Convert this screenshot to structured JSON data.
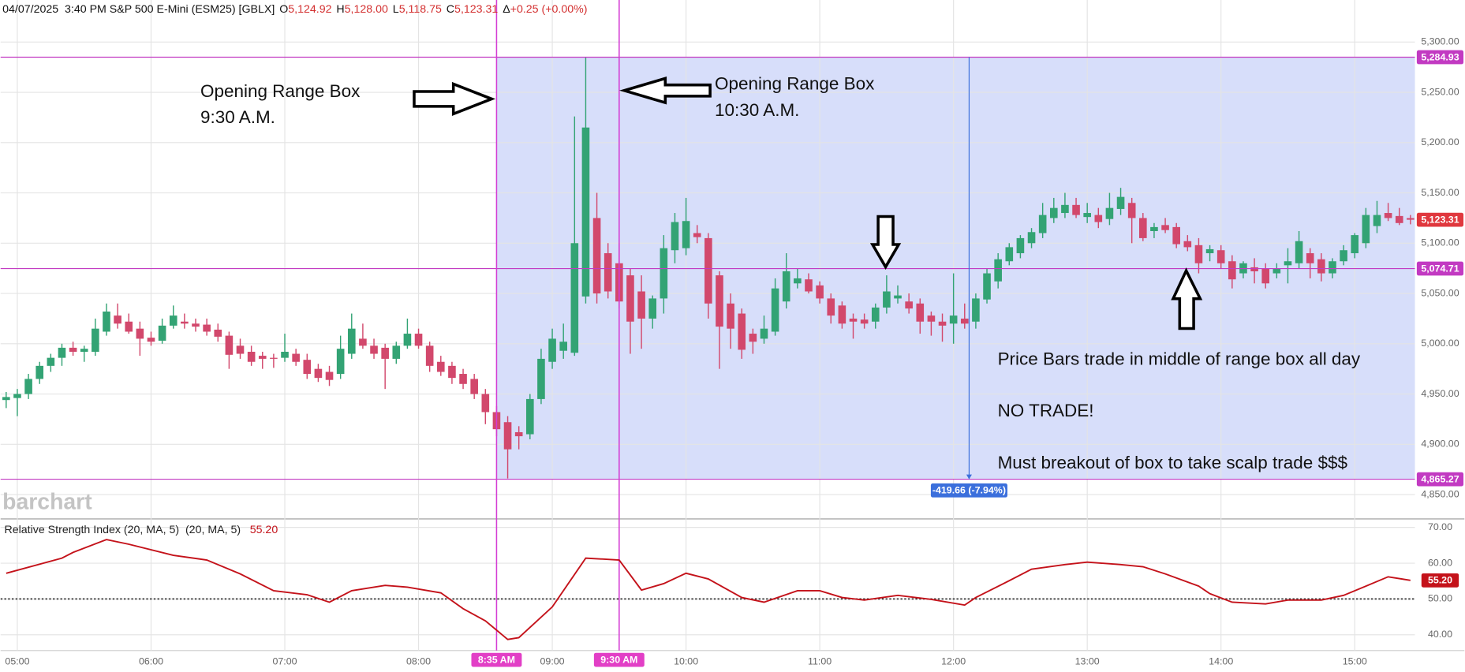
{
  "header": {
    "title": "04/07/2025  3:40 PM S&P 500 E-Mini (ESM25) [GBLX]",
    "quote": [
      {
        "key": "O",
        "value": "5,124.92"
      },
      {
        "key": "H",
        "value": "5,128.00"
      },
      {
        "key": "L",
        "value": "5,118.75"
      },
      {
        "key": "C",
        "value": "5,123.31"
      },
      {
        "key": "Δ",
        "value": "+0.25 (+0.00%)"
      }
    ]
  },
  "chart_data": [
    {
      "type": "candlestick",
      "watermark": "barchart",
      "up_color": "#33a374",
      "down_color": "#d2486c",
      "grid": true,
      "xlim": [
        -0.5,
        126.4
      ],
      "xticks": [
        {
          "value": 1,
          "label": "05:00"
        },
        {
          "value": 13,
          "label": "06:00"
        },
        {
          "value": 25,
          "label": "07:00"
        },
        {
          "value": 37,
          "label": "08:00"
        },
        {
          "value": 49,
          "label": "09:00"
        },
        {
          "value": 61,
          "label": "10:00"
        },
        {
          "value": 73,
          "label": "11:00"
        },
        {
          "value": 85,
          "label": "12:00"
        },
        {
          "value": 97,
          "label": "13:00"
        },
        {
          "value": 109,
          "label": "14:00"
        },
        {
          "value": 121,
          "label": "15:00"
        }
      ],
      "ylim": [
        4826.7,
        5341.8
      ],
      "yticks": [
        {
          "value": 4850,
          "label": "4,850.00"
        },
        {
          "value": 4900,
          "label": "4,900.00"
        },
        {
          "value": 4950,
          "label": "4,950.00"
        },
        {
          "value": 5000,
          "label": "5,000.00"
        },
        {
          "value": 5050,
          "label": "5,050.00"
        },
        {
          "value": 5100,
          "label": "5,100.00"
        },
        {
          "value": 5150,
          "label": "5,150.00"
        },
        {
          "value": 5200,
          "label": "5,200.00"
        },
        {
          "value": 5250,
          "label": "5,250.00"
        },
        {
          "value": 5300,
          "label": "5,300.00"
        }
      ],
      "candles": [
        [
          4944,
          4952,
          4936,
          4947
        ],
        [
          4946,
          4955,
          4928,
          4950
        ],
        [
          4950,
          4970,
          4945,
          4965
        ],
        [
          4965,
          4982,
          4960,
          4978
        ],
        [
          4978,
          4990,
          4972,
          4986
        ],
        [
          4986,
          5000,
          4978,
          4996
        ],
        [
          4996,
          5002,
          4988,
          4992
        ],
        [
          4992,
          4998,
          4982,
          4995
        ],
        [
          4992,
          5025,
          4988,
          5015
        ],
        [
          5012,
          5040,
          5008,
          5032
        ],
        [
          5028,
          5040,
          5015,
          5020
        ],
        [
          5022,
          5030,
          5010,
          5012
        ],
        [
          5015,
          5022,
          4988,
          5005
        ],
        [
          5006,
          5012,
          4998,
          5002
        ],
        [
          5003,
          5025,
          5000,
          5018
        ],
        [
          5018,
          5038,
          5015,
          5028
        ],
        [
          5022,
          5030,
          5015,
          5020
        ],
        [
          5020,
          5025,
          5012,
          5017
        ],
        [
          5019,
          5025,
          5008,
          5012
        ],
        [
          5014,
          5020,
          5002,
          5007
        ],
        [
          5008,
          5012,
          4975,
          4989
        ],
        [
          4998,
          5005,
          4985,
          4990
        ],
        [
          4992,
          4998,
          4978,
          4982
        ],
        [
          4988,
          4992,
          4975,
          4985
        ],
        [
          4986,
          4990,
          4976,
          4985
        ],
        [
          4986,
          5010,
          4982,
          4992
        ],
        [
          4990,
          4995,
          4978,
          4982
        ],
        [
          4984,
          4990,
          4965,
          4970
        ],
        [
          4975,
          4980,
          4962,
          4966
        ],
        [
          4972,
          4978,
          4958,
          4964
        ],
        [
          4970,
          5008,
          4965,
          4995
        ],
        [
          4990,
          5030,
          4985,
          5015
        ],
        [
          5005,
          5020,
          4995,
          4998
        ],
        [
          4998,
          5005,
          4985,
          4990
        ],
        [
          4996,
          5000,
          4955,
          4985
        ],
        [
          4985,
          5002,
          4980,
          4998
        ],
        [
          4998,
          5025,
          4995,
          5010
        ],
        [
          5010,
          5015,
          4995,
          4998
        ],
        [
          4998,
          5002,
          4972,
          4978
        ],
        [
          4982,
          4988,
          4968,
          4972
        ],
        [
          4978,
          4982,
          4960,
          4966
        ],
        [
          4970,
          4975,
          4955,
          4960
        ],
        [
          4965,
          4970,
          4945,
          4950
        ],
        [
          4950,
          4955,
          4920,
          4932
        ],
        [
          4932,
          4938,
          4908,
          4915
        ],
        [
          4922,
          4928,
          4866,
          4895
        ],
        [
          4912,
          4918,
          4895,
          4908
        ],
        [
          4910,
          4950,
          4905,
          4945
        ],
        [
          4945,
          4995,
          4940,
          4985
        ],
        [
          4982,
          5015,
          4975,
          5005
        ],
        [
          4993,
          5020,
          4985,
          5002
        ],
        [
          4991,
          5226,
          4988,
          5100
        ],
        [
          5047,
          5285,
          5040,
          5215
        ],
        [
          5125,
          5150,
          5040,
          5050
        ],
        [
          5090,
          5100,
          5045,
          5052
        ],
        [
          5080,
          5100,
          5035,
          5042
        ],
        [
          5068,
          5075,
          4990,
          5022
        ],
        [
          5052,
          5068,
          4995,
          5025
        ],
        [
          5025,
          5048,
          5015,
          5045
        ],
        [
          5045,
          5108,
          5030,
          5095
        ],
        [
          5093,
          5130,
          5080,
          5121
        ],
        [
          5095,
          5145,
          5088,
          5122
        ],
        [
          5110,
          5118,
          5100,
          5106
        ],
        [
          5105,
          5110,
          5025,
          5040
        ],
        [
          5068,
          5072,
          4975,
          5017
        ],
        [
          5040,
          5050,
          4995,
          5015
        ],
        [
          5030,
          5035,
          4985,
          4994
        ],
        [
          5010,
          5015,
          4990,
          5002
        ],
        [
          5005,
          5028,
          5000,
          5015
        ],
        [
          5012,
          5065,
          5008,
          5055
        ],
        [
          5042,
          5090,
          5035,
          5072
        ],
        [
          5060,
          5075,
          5055,
          5065
        ],
        [
          5064,
          5070,
          5050,
          5052
        ],
        [
          5058,
          5062,
          5040,
          5045
        ],
        [
          5045,
          5050,
          5020,
          5028
        ],
        [
          5038,
          5042,
          5015,
          5020
        ],
        [
          5025,
          5030,
          5005,
          5022
        ],
        [
          5024,
          5030,
          5015,
          5020
        ],
        [
          5022,
          5040,
          5015,
          5036
        ],
        [
          5036,
          5068,
          5030,
          5052
        ],
        [
          5045,
          5058,
          5040,
          5048
        ],
        [
          5042,
          5050,
          5030,
          5035
        ],
        [
          5040,
          5045,
          5010,
          5022
        ],
        [
          5028,
          5032,
          5008,
          5022
        ],
        [
          5022,
          5030,
          5002,
          5018
        ],
        [
          5020,
          5070,
          5000,
          5028
        ],
        [
          5025,
          5040,
          5015,
          5020
        ],
        [
          5022,
          5050,
          5015,
          5045
        ],
        [
          5044,
          5075,
          5040,
          5070
        ],
        [
          5062,
          5090,
          5055,
          5084
        ],
        [
          5082,
          5100,
          5078,
          5096
        ],
        [
          5090,
          5108,
          5085,
          5105
        ],
        [
          5100,
          5115,
          5095,
          5111
        ],
        [
          5110,
          5140,
          5105,
          5128
        ],
        [
          5125,
          5145,
          5120,
          5135
        ],
        [
          5130,
          5150,
          5125,
          5138
        ],
        [
          5138,
          5145,
          5125,
          5128
        ],
        [
          5126,
          5140,
          5120,
          5130
        ],
        [
          5128,
          5135,
          5115,
          5121
        ],
        [
          5124,
          5150,
          5118,
          5135
        ],
        [
          5134,
          5155,
          5128,
          5146
        ],
        [
          5140,
          5145,
          5100,
          5125
        ],
        [
          5125,
          5130,
          5102,
          5105
        ],
        [
          5112,
          5120,
          5105,
          5116
        ],
        [
          5118,
          5125,
          5110,
          5113
        ],
        [
          5116,
          5120,
          5095,
          5099
        ],
        [
          5102,
          5108,
          5092,
          5096
        ],
        [
          5098,
          5105,
          5070,
          5080
        ],
        [
          5090,
          5098,
          5082,
          5094
        ],
        [
          5093,
          5098,
          5075,
          5080
        ],
        [
          5082,
          5088,
          5055,
          5064
        ],
        [
          5070,
          5082,
          5065,
          5080
        ],
        [
          5076,
          5085,
          5060,
          5072
        ],
        [
          5075,
          5080,
          5055,
          5060
        ],
        [
          5070,
          5080,
          5065,
          5075
        ],
        [
          5078,
          5095,
          5060,
          5082
        ],
        [
          5080,
          5112,
          5075,
          5102
        ],
        [
          5090,
          5095,
          5065,
          5080
        ],
        [
          5084,
          5090,
          5062,
          5070
        ],
        [
          5070,
          5085,
          5065,
          5082
        ],
        [
          5082,
          5098,
          5078,
          5093
        ],
        [
          5090,
          5110,
          5085,
          5108
        ],
        [
          5100,
          5135,
          5095,
          5128
        ],
        [
          5117,
          5142,
          5110,
          5128
        ],
        [
          5130,
          5140,
          5122,
          5125
        ],
        [
          5127,
          5135,
          5118,
          5120
        ],
        [
          5124.92,
          5128,
          5118.75,
          5123.31
        ]
      ],
      "last_price": {
        "value": 5123.31,
        "label": "5,123.31"
      },
      "line_color": "#c23ac2",
      "hlines": [
        {
          "value": 5284.93,
          "label": "5,284.93"
        },
        {
          "value": 5074.71,
          "label": "5,074.71"
        },
        {
          "value": 4865.27,
          "label": "4,865.27"
        }
      ],
      "vlines": [
        {
          "value": 44,
          "label": "8:35 AM"
        },
        {
          "value": 55,
          "label": "9:30 AM"
        }
      ],
      "range_box": {
        "start": 44,
        "low": 4865.27,
        "high": 5284.93,
        "color": "#d7defa"
      },
      "measure": {
        "x": 86.4,
        "from": 5284.93,
        "to": 4865.27,
        "label": "-419.66 (-7.94%)",
        "color": "#3b6fdc"
      },
      "annotations": [
        "Opening Range Box",
        "9:30 A.M.",
        "Opening Range Box",
        "10:30 A.M.",
        "Price Bars trade in middle of range box all day",
        "NO TRADE!",
        "Must breakout of box to take scalp trade $$$"
      ]
    },
    {
      "type": "line",
      "title": "Relative Strength Index (20, MA, 5)  (20, MA, 5)",
      "xlim": [
        -0.5,
        126.4
      ],
      "ylim": [
        35.6,
        72.1
      ],
      "yticks": [
        {
          "value": 40,
          "label": "40.00"
        },
        {
          "value": 50,
          "label": "50.00"
        },
        {
          "value": 60,
          "label": "60.00"
        },
        {
          "value": 70,
          "label": "70.00"
        }
      ],
      "level": 50,
      "grid": true,
      "last_value": {
        "value": 55.2,
        "label": "55.20"
      },
      "series": [
        {
          "color": "#c4121a",
          "x": [
            0,
            5,
            6,
            9,
            11,
            15,
            18,
            21,
            24,
            27,
            29,
            31,
            34,
            36,
            39,
            41,
            43,
            45,
            46,
            49,
            52,
            55,
            57,
            59,
            61,
            63,
            66,
            68,
            71,
            73,
            75,
            77,
            80,
            83,
            86,
            87,
            90,
            92,
            95,
            97,
            100,
            102,
            104,
            107,
            108,
            110,
            113,
            115,
            118,
            120,
            122,
            124,
            126
          ],
          "values": [
            57.2,
            61.4,
            63.0,
            66.6,
            65.3,
            62.2,
            60.9,
            57.0,
            52.3,
            51.2,
            49.1,
            52.3,
            53.8,
            53.3,
            51.7,
            47.3,
            43.9,
            38.7,
            39.2,
            47.8,
            61.4,
            60.9,
            52.5,
            54.3,
            57.2,
            55.6,
            50.4,
            49.1,
            52.3,
            52.3,
            50.4,
            49.7,
            51.0,
            49.9,
            48.3,
            50.4,
            55.1,
            58.3,
            59.6,
            60.3,
            59.6,
            59.0,
            57.0,
            53.6,
            51.5,
            49.1,
            48.6,
            49.7,
            49.7,
            51.0,
            53.6,
            56.2,
            55.2
          ]
        }
      ]
    }
  ]
}
